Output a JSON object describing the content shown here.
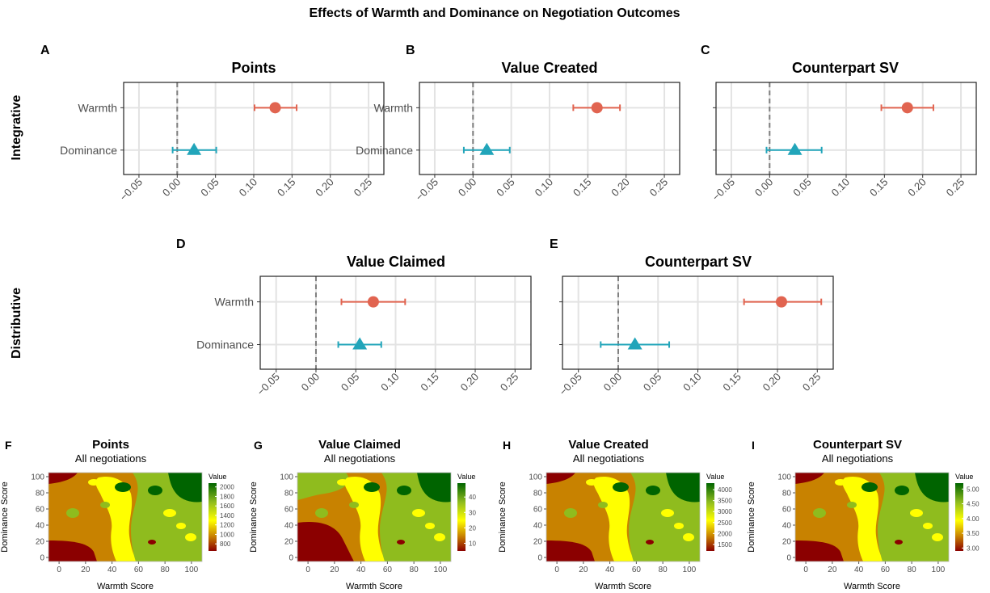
{
  "figure_title": "Effects of Warmth and Dominance on Negotiation Outcomes",
  "row_labels": {
    "integrative": "Integrative",
    "distributive": "Distributive"
  },
  "colors": {
    "warmth": "#e16450",
    "dominance": "#22a5ba",
    "zero_line": "#7f7f7f",
    "grid": "#e3e3e3"
  },
  "contour_palette": [
    "#8b0000",
    "#c88200",
    "#ffff00",
    "#8fbc1e",
    "#006400"
  ],
  "chart_data": [
    {
      "type": "scatter",
      "panel": "A",
      "title": "Points",
      "xlim": [
        -0.07,
        0.27
      ],
      "xticks": [
        "-0.05",
        "0.00",
        "0.05",
        "0.10",
        "0.15",
        "0.20",
        "0.25"
      ],
      "categories": [
        "Warmth",
        "Dominance"
      ],
      "series": [
        {
          "name": "Warmth",
          "estimate": 0.128,
          "ci_low": 0.101,
          "ci_high": 0.156,
          "marker": "circle"
        },
        {
          "name": "Dominance",
          "estimate": 0.022,
          "ci_low": -0.006,
          "ci_high": 0.051,
          "marker": "triangle"
        }
      ]
    },
    {
      "type": "scatter",
      "panel": "B",
      "title": "Value Created",
      "xlim": [
        -0.07,
        0.27
      ],
      "xticks": [
        "-0.05",
        "0.00",
        "0.05",
        "0.10",
        "0.15",
        "0.20",
        "0.25"
      ],
      "categories": [
        "Warmth",
        "Dominance"
      ],
      "series": [
        {
          "name": "Warmth",
          "estimate": 0.162,
          "ci_low": 0.131,
          "ci_high": 0.192,
          "marker": "circle"
        },
        {
          "name": "Dominance",
          "estimate": 0.018,
          "ci_low": -0.012,
          "ci_high": 0.048,
          "marker": "triangle"
        }
      ]
    },
    {
      "type": "scatter",
      "panel": "C",
      "title": "Counterpart SV",
      "xlim": [
        -0.07,
        0.27
      ],
      "xticks": [
        "-0.05",
        "0.00",
        "0.05",
        "0.10",
        "0.15",
        "0.20",
        "0.25"
      ],
      "categories": [
        "Warmth",
        "Dominance"
      ],
      "series": [
        {
          "name": "Warmth",
          "estimate": 0.18,
          "ci_low": 0.146,
          "ci_high": 0.214,
          "marker": "circle"
        },
        {
          "name": "Dominance",
          "estimate": 0.033,
          "ci_low": -0.004,
          "ci_high": 0.068,
          "marker": "triangle"
        }
      ]
    },
    {
      "type": "scatter",
      "panel": "D",
      "title": "Value Claimed",
      "xlim": [
        -0.07,
        0.27
      ],
      "xticks": [
        "-0.05",
        "0.00",
        "0.05",
        "0.10",
        "0.15",
        "0.20",
        "0.25"
      ],
      "categories": [
        "Warmth",
        "Dominance"
      ],
      "series": [
        {
          "name": "Warmth",
          "estimate": 0.072,
          "ci_low": 0.032,
          "ci_high": 0.112,
          "marker": "circle"
        },
        {
          "name": "Dominance",
          "estimate": 0.055,
          "ci_low": 0.028,
          "ci_high": 0.082,
          "marker": "triangle"
        }
      ]
    },
    {
      "type": "scatter",
      "panel": "E",
      "title": "Counterpart SV",
      "xlim": [
        -0.07,
        0.27
      ],
      "xticks": [
        "-0.05",
        "0.00",
        "0.05",
        "0.10",
        "0.15",
        "0.20",
        "0.25"
      ],
      "categories": [
        "Warmth",
        "Dominance"
      ],
      "series": [
        {
          "name": "Warmth",
          "estimate": 0.205,
          "ci_low": 0.158,
          "ci_high": 0.255,
          "marker": "circle"
        },
        {
          "name": "Dominance",
          "estimate": 0.021,
          "ci_low": -0.022,
          "ci_high": 0.064,
          "marker": "triangle"
        }
      ]
    },
    {
      "type": "heatmap",
      "panel": "F",
      "title": "Points",
      "subtitle": "All negotiations",
      "xlabel": "Warmth Score",
      "ylabel": "Dominance Score",
      "xticks": [
        "0",
        "20",
        "40",
        "60",
        "80",
        "100"
      ],
      "yticks": [
        "0",
        "20",
        "40",
        "60",
        "80",
        "100"
      ],
      "legend_title": "Value",
      "legend_ticks": [
        "800",
        "1000",
        "1200",
        "1400",
        "1600",
        "1800",
        "2000"
      ],
      "legend_range": [
        650,
        2080
      ],
      "variant": "standard"
    },
    {
      "type": "heatmap",
      "panel": "G",
      "title": "Value Claimed",
      "subtitle": "All negotiations",
      "xlabel": "Warmth Score",
      "ylabel": "Dominance Score",
      "xticks": [
        "0",
        "20",
        "40",
        "60",
        "80",
        "100"
      ],
      "yticks": [
        "0",
        "20",
        "40",
        "60",
        "80",
        "100"
      ],
      "legend_title": "Value",
      "legend_ticks": [
        "10",
        "20",
        "30",
        "40"
      ],
      "legend_range": [
        5,
        49
      ],
      "variant": "claimed"
    },
    {
      "type": "heatmap",
      "panel": "H",
      "title": "Value Created",
      "subtitle": "All negotiations",
      "xlabel": "Warmth Score",
      "ylabel": "Dominance Score",
      "xticks": [
        "0",
        "20",
        "40",
        "60",
        "80",
        "100"
      ],
      "yticks": [
        "0",
        "20",
        "40",
        "60",
        "80",
        "100"
      ],
      "legend_title": "Value",
      "legend_ticks": [
        "1500",
        "2000",
        "2500",
        "3000",
        "3500",
        "4000"
      ],
      "legend_range": [
        1200,
        4300
      ],
      "variant": "standard"
    },
    {
      "type": "heatmap",
      "panel": "I",
      "title": "Counterpart SV",
      "subtitle": "All negotiations",
      "xlabel": "Warmth Score",
      "ylabel": "Dominance Score",
      "xticks": [
        "0",
        "20",
        "40",
        "60",
        "80",
        "100"
      ],
      "yticks": [
        "0",
        "20",
        "40",
        "60",
        "80",
        "100"
      ],
      "legend_title": "Value",
      "legend_ticks": [
        "3.00",
        "3.50",
        "4.00",
        "4.50",
        "5.00"
      ],
      "legend_range": [
        2.9,
        5.2
      ],
      "variant": "standard"
    }
  ]
}
